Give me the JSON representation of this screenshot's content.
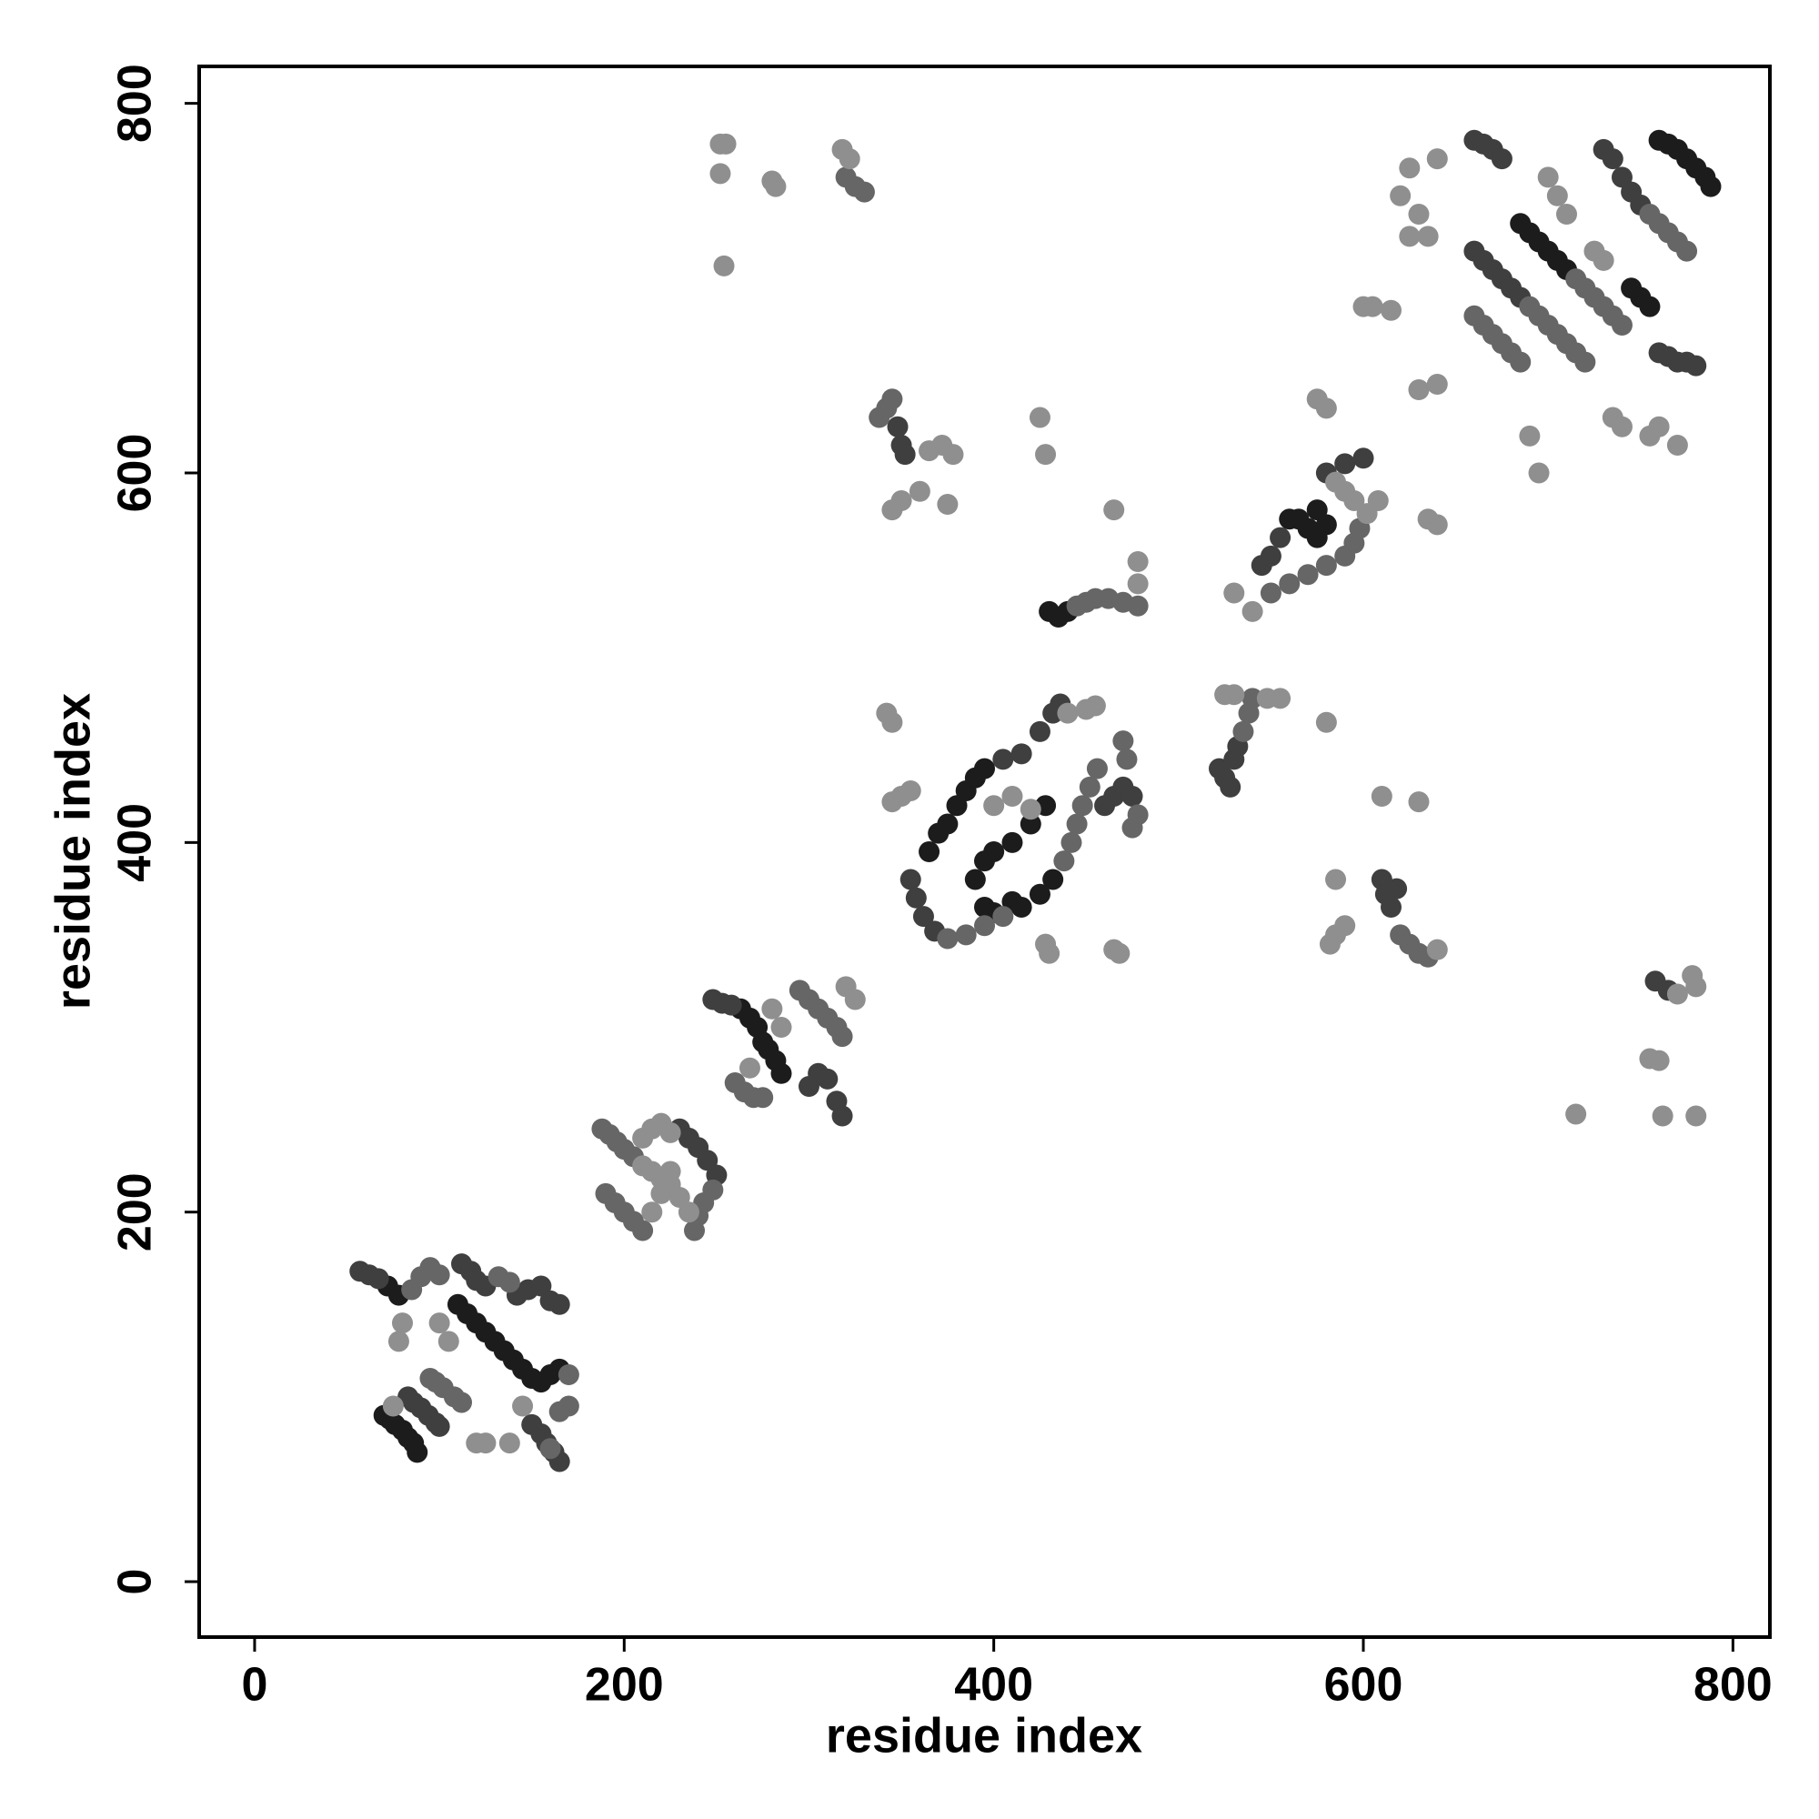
{
  "chart_data": {
    "type": "scatter",
    "x_label": "residue index",
    "y_label": "residue index",
    "xlim": [
      -30,
      820
    ],
    "ylim": [
      -30,
      820
    ],
    "xticks": [
      0,
      200,
      400,
      600,
      800
    ],
    "yticks": [
      0,
      200,
      400,
      600,
      800
    ],
    "grid": false,
    "series": [
      {
        "color": "#1c1c1c",
        "x": [
          72,
          78,
          110,
          115,
          120,
          125,
          130,
          135,
          140,
          145,
          150,
          155,
          160,
          165,
          70,
          73,
          76,
          80,
          83,
          86,
          88,
          263,
          268,
          272,
          275,
          278,
          282,
          285,
          365,
          370,
          375,
          380,
          385,
          390,
          395,
          390,
          395,
          400,
          410,
          420,
          428,
          395,
          400,
          410,
          415,
          425,
          432,
          430,
          435,
          440,
          565,
          570,
          575,
          580,
          575,
          560,
          685,
          690,
          695,
          700,
          705,
          710,
          760,
          765,
          770,
          775,
          780,
          785,
          788,
          745,
          750,
          755
        ],
        "values": [
          160,
          155,
          150,
          145,
          140,
          135,
          130,
          125,
          120,
          115,
          110,
          108,
          112,
          115,
          90,
          88,
          85,
          82,
          78,
          75,
          70,
          310,
          305,
          300,
          292,
          288,
          282,
          275,
          395,
          405,
          410,
          420,
          428,
          435,
          440,
          380,
          390,
          395,
          400,
          410,
          420,
          365,
          362,
          368,
          365,
          372,
          380,
          525,
          522,
          525,
          575,
          570,
          565,
          572,
          580,
          575,
          735,
          730,
          725,
          720,
          715,
          710,
          780,
          778,
          775,
          770,
          765,
          760,
          755,
          700,
          695,
          690
        ]
      },
      {
        "color": "#3f3f3f",
        "x": [
          57,
          62,
          67,
          112,
          117,
          120,
          125,
          142,
          148,
          155,
          160,
          165,
          83,
          86,
          90,
          94,
          98,
          100,
          150,
          155,
          158,
          162,
          165,
          230,
          235,
          240,
          245,
          250,
          248,
          253,
          258,
          300,
          305,
          310,
          315,
          318,
          355,
          358,
          362,
          368,
          405,
          415,
          425,
          432,
          436,
          460,
          465,
          470,
          475,
          522,
          525,
          528,
          530,
          532,
          545,
          550,
          555,
          580,
          590,
          600,
          660,
          665,
          670,
          675,
          680,
          685,
          660,
          665,
          670,
          675,
          730,
          735,
          740,
          745,
          750,
          760,
          765,
          770,
          775,
          780,
          348,
          350,
          352,
          610,
          612,
          615,
          618,
          758,
          765
        ],
        "values": [
          168,
          166,
          164,
          172,
          168,
          163,
          160,
          155,
          158,
          160,
          152,
          150,
          100,
          97,
          94,
          90,
          86,
          84,
          85,
          80,
          75,
          70,
          65,
          245,
          240,
          235,
          228,
          220,
          315,
          313,
          312,
          268,
          275,
          272,
          260,
          252,
          380,
          370,
          360,
          352,
          445,
          448,
          460,
          470,
          475,
          420,
          425,
          430,
          425,
          440,
          435,
          430,
          445,
          452,
          550,
          555,
          565,
          600,
          605,
          608,
          720,
          715,
          710,
          705,
          700,
          695,
          780,
          778,
          775,
          770,
          775,
          770,
          760,
          752,
          745,
          665,
          663,
          660,
          660,
          658,
          625,
          615,
          610,
          380,
          372,
          365,
          375,
          325,
          320
        ]
      },
      {
        "color": "#666666",
        "x": [
          85,
          90,
          95,
          100,
          132,
          138,
          95,
          98,
          102,
          108,
          112,
          160,
          165,
          170,
          170,
          188,
          192,
          196,
          200,
          205,
          190,
          195,
          200,
          205,
          210,
          248,
          243,
          240,
          238,
          295,
          300,
          305,
          310,
          315,
          318,
          260,
          265,
          270,
          275,
          375,
          385,
          395,
          405,
          438,
          442,
          445,
          448,
          452,
          456,
          478,
          475,
          472,
          470,
          445,
          450,
          455,
          462,
          470,
          478,
          535,
          538,
          540,
          550,
          560,
          570,
          580,
          590,
          595,
          598,
          690,
          695,
          700,
          705,
          710,
          715,
          720,
          715,
          720,
          725,
          730,
          735,
          740,
          755,
          760,
          765,
          770,
          775,
          660,
          665,
          670,
          675,
          680,
          685,
          338,
          342,
          345,
          620,
          625,
          630,
          635,
          320,
          325,
          330
        ],
        "values": [
          158,
          165,
          170,
          166,
          165,
          162,
          110,
          108,
          105,
          100,
          97,
          72,
          92,
          95,
          112,
          245,
          242,
          238,
          234,
          230,
          210,
          205,
          200,
          195,
          190,
          212,
          205,
          198,
          190,
          320,
          315,
          310,
          305,
          300,
          295,
          270,
          265,
          262,
          262,
          348,
          350,
          355,
          360,
          390,
          400,
          410,
          420,
          430,
          440,
          415,
          408,
          445,
          455,
          528,
          530,
          532,
          532,
          530,
          528,
          460,
          470,
          478,
          535,
          540,
          545,
          550,
          555,
          562,
          570,
          690,
          685,
          680,
          675,
          670,
          665,
          660,
          705,
          700,
          695,
          690,
          685,
          680,
          740,
          735,
          730,
          725,
          720,
          685,
          680,
          675,
          670,
          665,
          660,
          630,
          635,
          640,
          350,
          345,
          340,
          338,
          760,
          755,
          752
        ]
      },
      {
        "color": "#8f8f8f",
        "x": [
          75,
          78,
          80,
          120,
          125,
          138,
          145,
          100,
          105,
          210,
          215,
          220,
          225,
          210,
          215,
          220,
          225,
          215,
          220,
          225,
          230,
          235,
          268,
          280,
          285,
          320,
          325,
          345,
          350,
          355,
          342,
          345,
          400,
          410,
          420,
          440,
          450,
          455,
          430,
          428,
          465,
          468,
          478,
          478,
          465,
          530,
          525,
          548,
          555,
          602,
          608,
          585,
          590,
          595,
          575,
          580,
          630,
          640,
          635,
          640,
          530,
          540,
          700,
          705,
          710,
          725,
          730,
          735,
          740,
          755,
          760,
          770,
          690,
          695,
          640,
          625,
          620,
          630,
          625,
          635,
          600,
          605,
          615,
          345,
          350,
          360,
          365,
          372,
          378,
          375,
          425,
          428,
          582,
          585,
          590,
          585,
          640,
          610,
          630,
          580,
          770,
          780,
          778,
          760,
          755,
          762,
          780,
          715,
          252,
          255,
          252,
          254,
          280,
          282,
          318,
          322
        ],
        "values": [
          95,
          130,
          140,
          75,
          75,
          75,
          95,
          140,
          130,
          240,
          245,
          248,
          243,
          225,
          222,
          218,
          222,
          200,
          210,
          215,
          208,
          200,
          278,
          310,
          300,
          322,
          315,
          422,
          425,
          428,
          470,
          465,
          420,
          425,
          418,
          470,
          472,
          474,
          340,
          345,
          342,
          340,
          540,
          552,
          580,
          480,
          480,
          478,
          478,
          578,
          585,
          595,
          590,
          585,
          640,
          635,
          645,
          648,
          575,
          572,
          535,
          525,
          760,
          750,
          740,
          720,
          715,
          630,
          625,
          620,
          625,
          615,
          620,
          600,
          770,
          765,
          750,
          740,
          728,
          728,
          690,
          690,
          688,
          580,
          585,
          590,
          612,
          615,
          610,
          583,
          630,
          610,
          345,
          350,
          355,
          380,
          342,
          425,
          422,
          465,
          318,
          322,
          328,
          282,
          283,
          252,
          252,
          253,
          778,
          778,
          762,
          712,
          758,
          755,
          775,
          770
        ]
      }
    ]
  }
}
